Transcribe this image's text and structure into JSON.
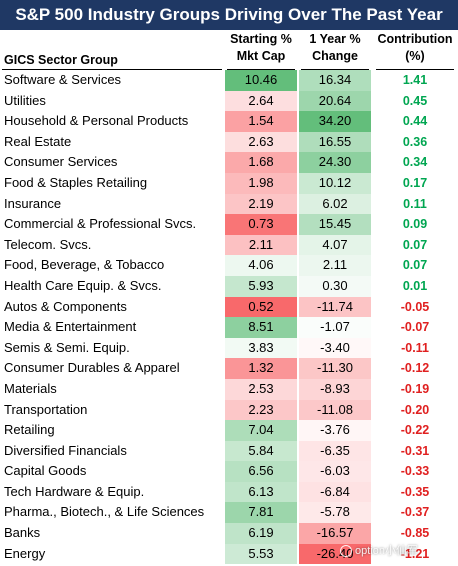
{
  "chart_data": {
    "type": "table",
    "title": "S&P 500 Industry Groups Driving Over The Past Year",
    "columns": {
      "sector": "GICS Sector Group",
      "mkt_cap_line1": "Starting %",
      "mkt_cap_line2": "Mkt Cap",
      "change_line1": "1 Year %",
      "change_line2": "Change",
      "contrib_line1": "Contribution",
      "contrib_line2": "(%)"
    },
    "rows": [
      {
        "sector": "Software & Services",
        "mkt_cap": "10.46",
        "change": "16.34",
        "contribution": "1.41"
      },
      {
        "sector": "Utilities",
        "mkt_cap": "2.64",
        "change": "20.64",
        "contribution": "0.45"
      },
      {
        "sector": "Household & Personal Products",
        "mkt_cap": "1.54",
        "change": "34.20",
        "contribution": "0.44"
      },
      {
        "sector": "Real Estate",
        "mkt_cap": "2.63",
        "change": "16.55",
        "contribution": "0.36"
      },
      {
        "sector": "Consumer Services",
        "mkt_cap": "1.68",
        "change": "24.30",
        "contribution": "0.34"
      },
      {
        "sector": "Food & Staples Retailing",
        "mkt_cap": "1.98",
        "change": "10.12",
        "contribution": "0.17"
      },
      {
        "sector": "Insurance",
        "mkt_cap": "2.19",
        "change": "6.02",
        "contribution": "0.11"
      },
      {
        "sector": "Commercial & Professional Svcs.",
        "mkt_cap": "0.73",
        "change": "15.45",
        "contribution": "0.09"
      },
      {
        "sector": "Telecom. Svcs.",
        "mkt_cap": "2.11",
        "change": "4.07",
        "contribution": "0.07"
      },
      {
        "sector": "Food, Beverage, & Tobacco",
        "mkt_cap": "4.06",
        "change": "2.11",
        "contribution": "0.07"
      },
      {
        "sector": "Health Care Equip. & Svcs.",
        "mkt_cap": "5.93",
        "change": "0.30",
        "contribution": "0.01"
      },
      {
        "sector": "Autos & Components",
        "mkt_cap": "0.52",
        "change": "-11.74",
        "contribution": "-0.05"
      },
      {
        "sector": "Media & Entertainment",
        "mkt_cap": "8.51",
        "change": "-1.07",
        "contribution": "-0.07"
      },
      {
        "sector": "Semis & Semi. Equip.",
        "mkt_cap": "3.83",
        "change": "-3.40",
        "contribution": "-0.11"
      },
      {
        "sector": "Consumer Durables & Apparel",
        "mkt_cap": "1.32",
        "change": "-11.30",
        "contribution": "-0.12"
      },
      {
        "sector": "Materials",
        "mkt_cap": "2.53",
        "change": "-8.93",
        "contribution": "-0.19"
      },
      {
        "sector": "Transportation",
        "mkt_cap": "2.23",
        "change": "-11.08",
        "contribution": "-0.20"
      },
      {
        "sector": "Retailing",
        "mkt_cap": "7.04",
        "change": "-3.76",
        "contribution": "-0.22"
      },
      {
        "sector": "Diversified Financials",
        "mkt_cap": "5.84",
        "change": "-6.35",
        "contribution": "-0.31"
      },
      {
        "sector": "Capital Goods",
        "mkt_cap": "6.56",
        "change": "-6.03",
        "contribution": "-0.33"
      },
      {
        "sector": "Tech Hardware & Equip.",
        "mkt_cap": "6.13",
        "change": "-6.84",
        "contribution": "-0.35"
      },
      {
        "sector": "Pharma., Biotech., & Life Sciences",
        "mkt_cap": "7.81",
        "change": "-5.78",
        "contribution": "-0.37"
      },
      {
        "sector": "Banks",
        "mkt_cap": "6.19",
        "change": "-16.57",
        "contribution": "-0.85"
      },
      {
        "sector": "Energy",
        "mkt_cap": "5.53",
        "change": "-26.40",
        "contribution": "-1.21"
      }
    ]
  },
  "colors": {
    "title_bg": "#1f3864",
    "positive_text": "#00a651",
    "negative_text": "#e02020",
    "heat_high": "#63be7b",
    "heat_mid": "#ffffff",
    "heat_low": "#f8696b"
  },
  "watermark": {
    "text": "option小仙军",
    "icon": "camera-icon"
  }
}
